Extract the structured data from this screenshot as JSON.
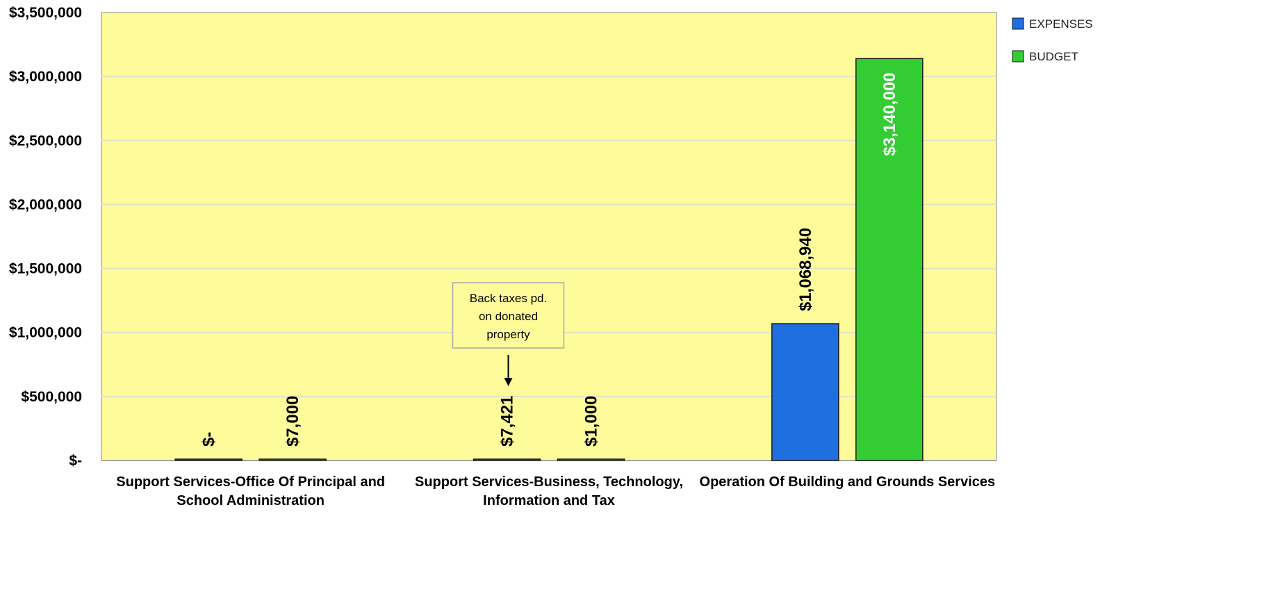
{
  "chart_data": {
    "type": "bar",
    "title": "",
    "xlabel": "",
    "ylabel": "",
    "ylim": [
      0,
      3500000
    ],
    "yticks": [
      0,
      500000,
      1000000,
      1500000,
      2000000,
      2500000,
      3000000,
      3500000
    ],
    "ytick_labels": [
      "$-",
      "$500,000",
      "$1,000,000",
      "$1,500,000",
      "$2,000,000",
      "$2,500,000",
      "$3,000,000",
      "$3,500,000"
    ],
    "grid": true,
    "legend_position": "top-right",
    "categories": [
      [
        "Support Services-Office Of Principal and",
        "School Administration"
      ],
      [
        "Support Services-Business, Technology,",
        "Information and Tax"
      ],
      [
        "Operation Of Building and Grounds Services"
      ]
    ],
    "series": [
      {
        "name": "EXPENSES",
        "color": "#1f6fe0",
        "values": [
          0,
          7421,
          1068940
        ],
        "labels": [
          "$-",
          "$7,421",
          "$1,068,940"
        ]
      },
      {
        "name": "BUDGET",
        "color": "#33cc33",
        "values": [
          7000,
          1000,
          3140000
        ],
        "labels": [
          "$7,000",
          "$1,000",
          "$3,140,000"
        ]
      }
    ],
    "annotations": [
      {
        "lines": [
          "Back taxes pd.",
          "on donated",
          "property"
        ],
        "category_index": 1,
        "series_index": 0
      }
    ],
    "colors": {
      "plot_background": "#fefc9a",
      "gridline": "#e2e2c8",
      "axis": "#888888"
    }
  }
}
